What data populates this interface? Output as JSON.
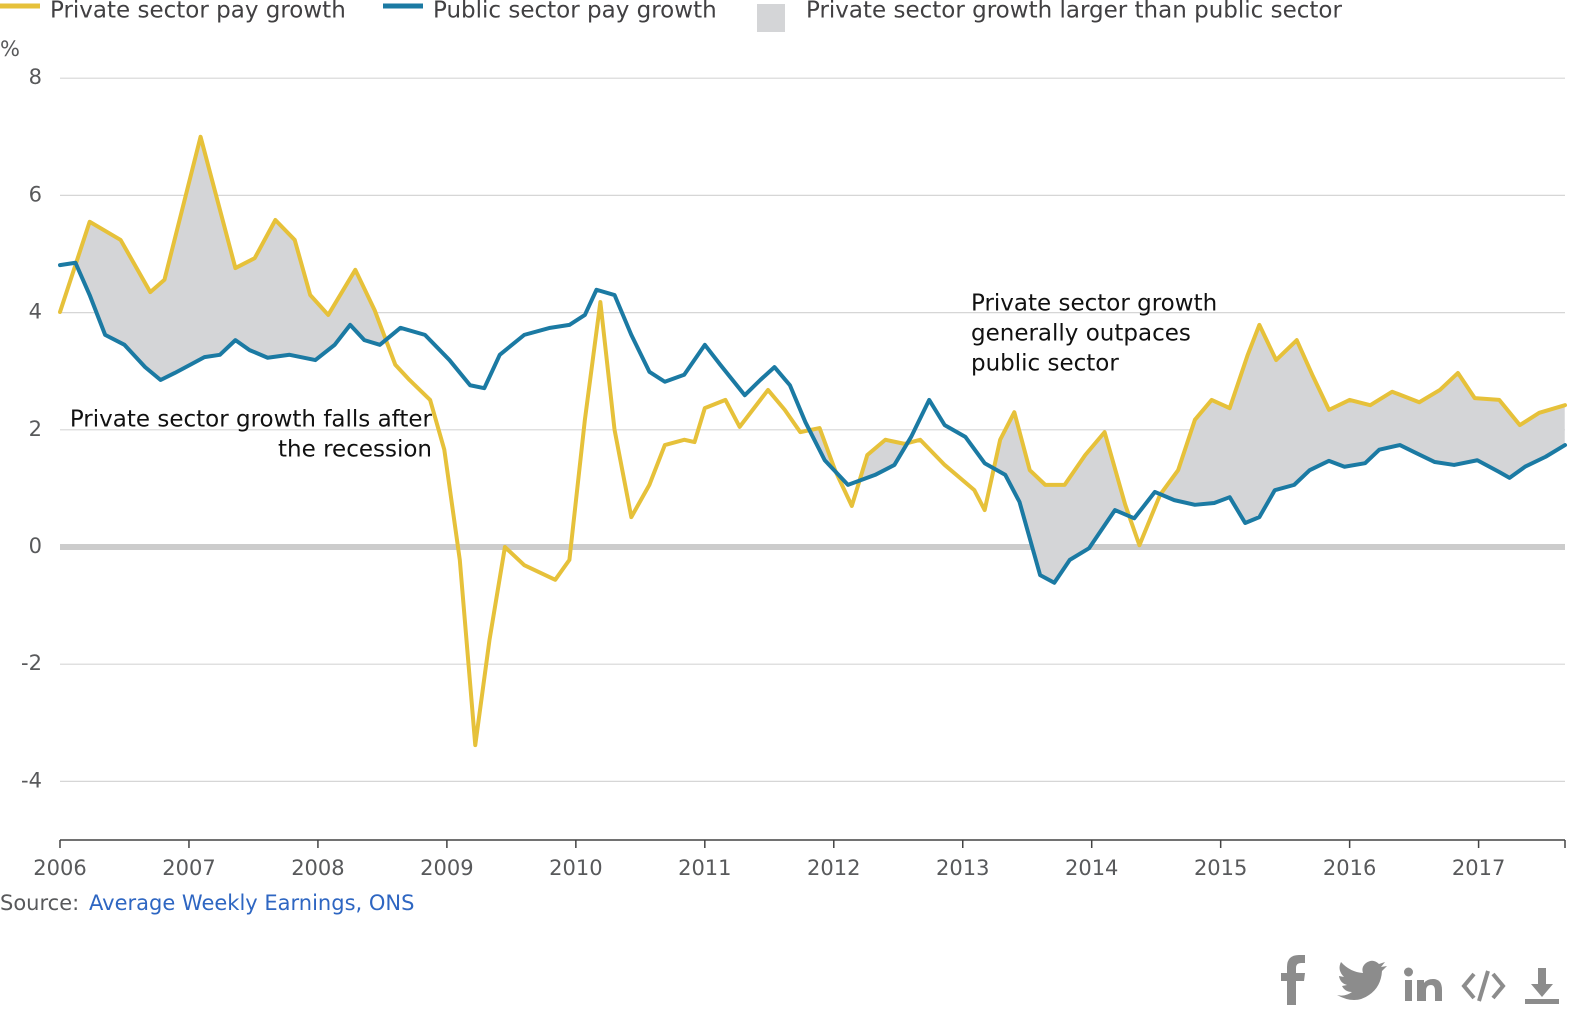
{
  "chart_data": {
    "type": "line",
    "y_label": "%",
    "xlim": [
      2006,
      2017.67
    ],
    "ylim": [
      -5,
      8
    ],
    "xticks": [
      2006,
      2007,
      2008,
      2009,
      2010,
      2011,
      2012,
      2013,
      2014,
      2015,
      2016,
      2017
    ],
    "yticks": [
      -4,
      -2,
      0,
      2,
      4,
      6,
      8
    ],
    "grid": true,
    "zero_line": true,
    "series": [
      {
        "name": "Private sector pay growth",
        "color": "#e6c13a",
        "x": [
          2006.0,
          2006.23,
          2006.47,
          2006.7,
          2006.81,
          2007.09,
          2007.36,
          2007.51,
          2007.67,
          2007.82,
          2007.94,
          2008.08,
          2008.29,
          2008.44,
          2008.6,
          2008.71,
          2008.87,
          2008.98,
          2009.1,
          2009.22,
          2009.33,
          2009.45,
          2009.6,
          2009.84,
          2009.95,
          2010.07,
          2010.19,
          2010.3,
          2010.43,
          2010.57,
          2010.69,
          2010.84,
          2010.92,
          2011.0,
          2011.16,
          2011.27,
          2011.49,
          2011.62,
          2011.74,
          2011.89,
          2012.01,
          2012.14,
          2012.26,
          2012.4,
          2012.55,
          2012.67,
          2012.86,
          2013.09,
          2013.17,
          2013.29,
          2013.4,
          2013.52,
          2013.64,
          2013.79,
          2013.95,
          2014.1,
          2014.26,
          2014.37,
          2014.53,
          2014.67,
          2014.8,
          2014.93,
          2015.07,
          2015.21,
          2015.3,
          2015.43,
          2015.59,
          2015.71,
          2015.84,
          2016.0,
          2016.16,
          2016.33,
          2016.54,
          2016.7,
          2016.84,
          2016.97,
          2017.16,
          2017.32,
          2017.47,
          2017.67
        ],
        "values": [
          4.01,
          5.55,
          5.24,
          4.35,
          4.56,
          7.0,
          4.76,
          4.93,
          5.58,
          5.24,
          4.3,
          3.96,
          4.73,
          4.04,
          3.11,
          2.85,
          2.51,
          1.66,
          -0.22,
          -3.38,
          -1.59,
          0,
          -0.31,
          -0.56,
          -0.22,
          2.17,
          4.18,
          2.0,
          0.51,
          1.06,
          1.74,
          1.83,
          1.79,
          2.37,
          2.51,
          2.05,
          2.68,
          2.34,
          1.96,
          2.03,
          1.31,
          0.7,
          1.57,
          1.83,
          1.76,
          1.83,
          1.4,
          0.97,
          0.63,
          1.83,
          2.3,
          1.31,
          1.06,
          1.06,
          1.57,
          1.96,
          0.72,
          0.03,
          0.89,
          1.31,
          2.17,
          2.51,
          2.37,
          3.28,
          3.79,
          3.19,
          3.53,
          2.94,
          2.34,
          2.51,
          2.42,
          2.65,
          2.47,
          2.68,
          2.97,
          2.54,
          2.51,
          2.08,
          2.29,
          2.42
        ]
      },
      {
        "name": "Public sector pay growth",
        "color": "#1b7aa3",
        "x": [
          2006.0,
          2006.12,
          2006.23,
          2006.35,
          2006.5,
          2006.66,
          2006.78,
          2006.89,
          2007.01,
          2007.12,
          2007.24,
          2007.36,
          2007.47,
          2007.61,
          2007.78,
          2007.98,
          2008.13,
          2008.25,
          2008.36,
          2008.48,
          2008.64,
          2008.83,
          2009.02,
          2009.18,
          2009.29,
          2009.41,
          2009.6,
          2009.8,
          2009.95,
          2010.07,
          2010.16,
          2010.3,
          2010.43,
          2010.57,
          2010.69,
          2010.84,
          2011.0,
          2011.12,
          2011.31,
          2011.43,
          2011.54,
          2011.66,
          2011.78,
          2011.93,
          2012.11,
          2012.32,
          2012.47,
          2012.6,
          2012.74,
          2012.86,
          2013.02,
          2013.17,
          2013.33,
          2013.44,
          2013.6,
          2013.71,
          2013.83,
          2013.98,
          2014.18,
          2014.33,
          2014.49,
          2014.64,
          2014.8,
          2014.95,
          2015.07,
          2015.19,
          2015.3,
          2015.42,
          2015.57,
          2015.69,
          2015.84,
          2015.96,
          2016.12,
          2016.23,
          2016.39,
          2016.5,
          2016.66,
          2016.81,
          2016.99,
          2017.16,
          2017.24,
          2017.36,
          2017.52,
          2017.67
        ],
        "values": [
          4.81,
          4.85,
          4.3,
          3.62,
          3.45,
          3.07,
          2.85,
          2.97,
          3.11,
          3.24,
          3.28,
          3.53,
          3.36,
          3.23,
          3.28,
          3.19,
          3.45,
          3.79,
          3.53,
          3.45,
          3.74,
          3.62,
          3.19,
          2.76,
          2.71,
          3.28,
          3.62,
          3.74,
          3.79,
          3.96,
          4.39,
          4.3,
          3.62,
          2.99,
          2.82,
          2.94,
          3.45,
          3.11,
          2.59,
          2.85,
          3.07,
          2.76,
          2.13,
          1.48,
          1.06,
          1.23,
          1.4,
          1.88,
          2.51,
          2.08,
          1.88,
          1.43,
          1.23,
          0.77,
          -0.48,
          -0.61,
          -0.22,
          -0.02,
          0.63,
          0.49,
          0.94,
          0.8,
          0.72,
          0.75,
          0.85,
          0.41,
          0.51,
          0.97,
          1.06,
          1.31,
          1.47,
          1.37,
          1.43,
          1.66,
          1.74,
          1.62,
          1.45,
          1.4,
          1.48,
          1.28,
          1.18,
          1.37,
          1.54,
          1.74
        ]
      }
    ],
    "area": {
      "name": "Private sector growth larger than public sector",
      "color": "#d4d5d7"
    },
    "annotations": [
      {
        "text": [
          "Private sector growth falls after",
          "the recession"
        ]
      },
      {
        "text": [
          "Private sector growth",
          "generally outpaces",
          "public sector"
        ]
      }
    ],
    "source": {
      "label": "Source:",
      "link": "Average Weekly Earnings, ONS"
    }
  }
}
